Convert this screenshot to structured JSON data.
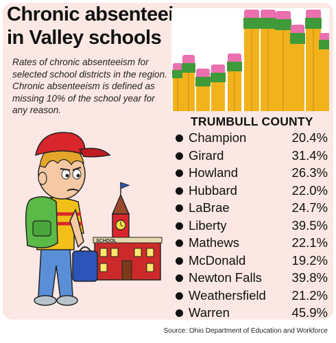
{
  "title": {
    "line1": "Chronic absenteeism",
    "line2": "in Valley schools"
  },
  "description": "Rates of chronic absenteeism for selected school districts in the region. Chronic absenteeism is defined as missing 10% of the school year for any reason.",
  "county": "TRUMBULL COUNTY",
  "districts": [
    {
      "name": "Champion",
      "rate": "20.4%"
    },
    {
      "name": "Girard",
      "rate": "31.4%"
    },
    {
      "name": "Howland",
      "rate": "26.3%"
    },
    {
      "name": "Hubbard",
      "rate": "22.0%"
    },
    {
      "name": "LaBrae",
      "rate": "24.7%"
    },
    {
      "name": "Liberty",
      "rate": "39.5%"
    },
    {
      "name": "Mathews",
      "rate": "22.1%"
    },
    {
      "name": "McDonald",
      "rate": "19.2%"
    },
    {
      "name": "Newton Falls",
      "rate": "39.8%"
    },
    {
      "name": "Weathersfield",
      "rate": "21.2%"
    },
    {
      "name": "Warren",
      "rate": "45.9%"
    }
  ],
  "illustration": {
    "school_sign": "SCHOOL"
  },
  "source": "Source: Ohio Department of Education and Workforce",
  "colors": {
    "panel": "#fbe8e4",
    "pencil": "#f2b21c",
    "eraser": "#ec6fb0",
    "ferrule": "#3f9a3a",
    "cap": "#d8262c",
    "shirt": "#58b947"
  }
}
